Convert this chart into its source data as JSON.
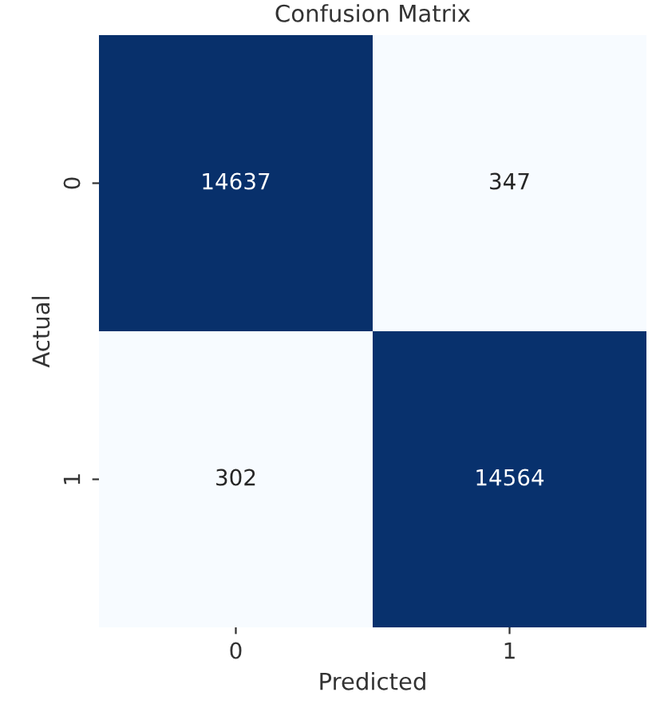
{
  "chart_data": {
    "type": "heatmap",
    "title": "Confusion Matrix",
    "xlabel": "Predicted",
    "ylabel": "Actual",
    "categories": [
      "0",
      "1"
    ],
    "y_categories": [
      "0",
      "1"
    ],
    "cells": [
      [
        14637,
        347
      ],
      [
        302,
        14564
      ]
    ],
    "data_labels": true
  }
}
